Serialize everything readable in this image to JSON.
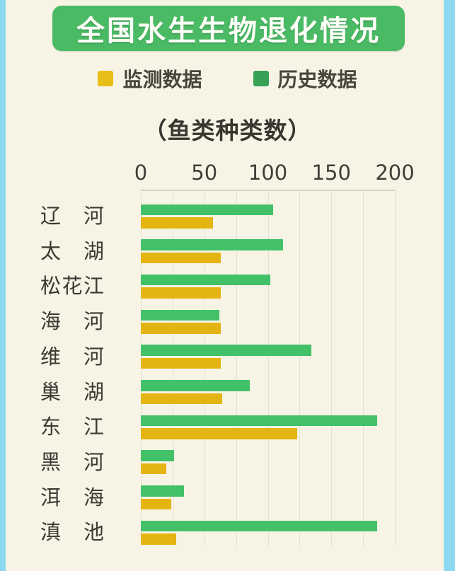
{
  "page": {
    "title": "全国水生生物退化情况",
    "subtitle": "（鱼类种类数）"
  },
  "legend": [
    {
      "label": "监测数据",
      "color": "#e9bd18"
    },
    {
      "label": "历史数据",
      "color": "#37a155"
    }
  ],
  "chart_data": {
    "type": "bar",
    "orientation": "horizontal",
    "title": "全国水生生物退化情况",
    "subtitle": "（鱼类种类数）",
    "categories": [
      "辽河",
      "太湖",
      "松花江",
      "海河",
      "维河",
      "巢湖",
      "东江",
      "黑河",
      "洱海",
      "滇池"
    ],
    "series": [
      {
        "name": "监测数据",
        "color": "#e4b512",
        "values": [
          57,
          63,
          63,
          63,
          63,
          64,
          123,
          20,
          24,
          28
        ]
      },
      {
        "name": "历史数据",
        "color": "#42c169",
        "values": [
          104,
          112,
          102,
          62,
          134,
          86,
          186,
          26,
          34,
          186
        ]
      }
    ],
    "xlim": [
      0,
      200
    ],
    "xticks": [
      0,
      50,
      100,
      150,
      200
    ],
    "grid_interval": 25,
    "grid": true,
    "legend_position": "top",
    "bar_order_in_group": [
      "历史数据",
      "监测数据"
    ]
  },
  "colors": {
    "page_background": "#f7f4e6",
    "side_strips": "#8dd8f1",
    "title_box": "#4aba64",
    "title_text": "#fffef8",
    "bar_history": "#42c169",
    "bar_monitoring": "#e4b512",
    "gridline": "#e4e1d2",
    "text": "#3b3b33"
  }
}
